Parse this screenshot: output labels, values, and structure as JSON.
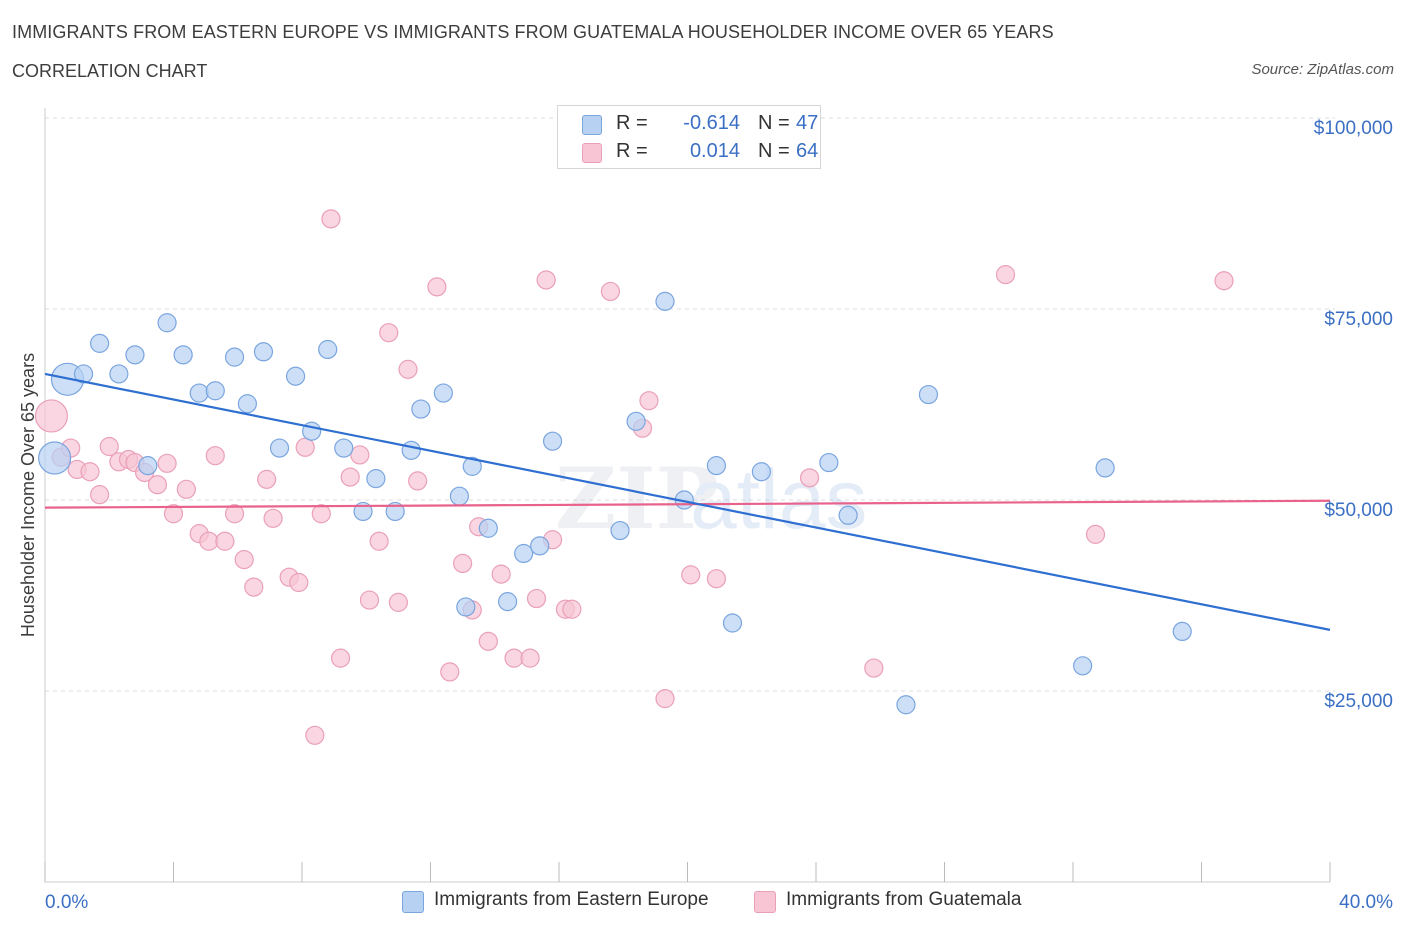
{
  "header": {
    "title": "IMMIGRANTS FROM EASTERN EUROPE VS IMMIGRANTS FROM GUATEMALA HOUSEHOLDER INCOME OVER 65 YEARS",
    "subtitle": "CORRELATION CHART",
    "source": "Source: ZipAtlas.com"
  },
  "legend": {
    "rows": [
      {
        "r_label": "R =",
        "r_value": "-0.614",
        "n_label": "N =",
        "n_value": "47"
      },
      {
        "r_label": "R =",
        "r_value": "0.014",
        "n_label": "N =",
        "n_value": "64"
      }
    ]
  },
  "bottom_legend": {
    "items": [
      "Immigrants from Eastern Europe",
      "Immigrants from Guatemala"
    ]
  },
  "watermark": {
    "zip": "ZIP",
    "atlas": "atlas"
  },
  "colors": {
    "blue_fill": "#b7d1f3",
    "blue_stroke": "#7aa5df",
    "blue_line": "#2e6fd1",
    "pink_fill": "#f7c5d4",
    "pink_stroke": "#eaa0b8",
    "pink_line": "#e8628c",
    "axis_text": "#3a6fc4",
    "grid": "#dddddd"
  },
  "chart_data": {
    "type": "scatter",
    "title": "IMMIGRANTS FROM EASTERN EUROPE VS IMMIGRANTS FROM GUATEMALA HOUSEHOLDER INCOME OVER 65 YEARS",
    "xlabel": "",
    "ylabel": "Householder Income Over 65 years",
    "xlim": [
      0,
      40
    ],
    "ylim": [
      0,
      100000
    ],
    "x_tick_labels": [
      "0.0%",
      "40.0%"
    ],
    "y_ticks": [
      25000,
      50000,
      75000,
      100000
    ],
    "y_tick_labels": [
      "$25,000",
      "$50,000",
      "$75,000",
      "$100,000"
    ],
    "grid": "horizontal dashed",
    "series": [
      {
        "name": "Immigrants from Eastern Europe",
        "color": "#b7d1f3",
        "trend": {
          "x": [
            0,
            40
          ],
          "y": [
            66500,
            33000
          ]
        },
        "points": [
          {
            "x": 0.3,
            "y": 55500,
            "big": true
          },
          {
            "x": 0.7,
            "y": 65800,
            "big": true
          },
          {
            "x": 1.2,
            "y": 66500
          },
          {
            "x": 1.7,
            "y": 70500
          },
          {
            "x": 2.3,
            "y": 66500
          },
          {
            "x": 2.8,
            "y": 69000
          },
          {
            "x": 3.2,
            "y": 54500
          },
          {
            "x": 3.8,
            "y": 73200
          },
          {
            "x": 4.3,
            "y": 69000
          },
          {
            "x": 4.8,
            "y": 64000
          },
          {
            "x": 5.3,
            "y": 64300
          },
          {
            "x": 5.9,
            "y": 68700
          },
          {
            "x": 6.3,
            "y": 62600
          },
          {
            "x": 6.8,
            "y": 69400
          },
          {
            "x": 7.3,
            "y": 56800
          },
          {
            "x": 7.8,
            "y": 66200
          },
          {
            "x": 8.3,
            "y": 59000
          },
          {
            "x": 8.8,
            "y": 69700
          },
          {
            "x": 9.3,
            "y": 56800
          },
          {
            "x": 9.9,
            "y": 48500
          },
          {
            "x": 10.3,
            "y": 52800
          },
          {
            "x": 10.9,
            "y": 48500
          },
          {
            "x": 11.4,
            "y": 56500
          },
          {
            "x": 11.7,
            "y": 61900
          },
          {
            "x": 12.4,
            "y": 64000
          },
          {
            "x": 12.9,
            "y": 50500
          },
          {
            "x": 13.3,
            "y": 54400
          },
          {
            "x": 13.8,
            "y": 46300
          },
          {
            "x": 14.4,
            "y": 36700
          },
          {
            "x": 14.9,
            "y": 43000
          },
          {
            "x": 15.4,
            "y": 44000
          },
          {
            "x": 15.8,
            "y": 57700
          },
          {
            "x": 13.1,
            "y": 36000
          },
          {
            "x": 17.9,
            "y": 46000
          },
          {
            "x": 18.4,
            "y": 60300
          },
          {
            "x": 19.9,
            "y": 50000
          },
          {
            "x": 19.3,
            "y": 76000
          },
          {
            "x": 20.9,
            "y": 54500
          },
          {
            "x": 21.4,
            "y": 33900
          },
          {
            "x": 22.3,
            "y": 53700
          },
          {
            "x": 24.4,
            "y": 54900
          },
          {
            "x": 25.0,
            "y": 48000
          },
          {
            "x": 26.8,
            "y": 23200
          },
          {
            "x": 27.5,
            "y": 63800
          },
          {
            "x": 32.3,
            "y": 28300
          },
          {
            "x": 33.0,
            "y": 54200
          },
          {
            "x": 35.4,
            "y": 32800
          }
        ]
      },
      {
        "name": "Immigrants from Guatemala",
        "color": "#f7c5d4",
        "trend": {
          "x": [
            0,
            40
          ],
          "y": [
            49000,
            49900
          ]
        },
        "points": [
          {
            "x": 0.2,
            "y": 61000,
            "big": true
          },
          {
            "x": 0.5,
            "y": 55600
          },
          {
            "x": 0.8,
            "y": 56800
          },
          {
            "x": 1.0,
            "y": 54000
          },
          {
            "x": 1.4,
            "y": 53700
          },
          {
            "x": 1.7,
            "y": 50700
          },
          {
            "x": 2.0,
            "y": 57000
          },
          {
            "x": 2.3,
            "y": 55000
          },
          {
            "x": 2.6,
            "y": 55300
          },
          {
            "x": 2.8,
            "y": 54900
          },
          {
            "x": 3.1,
            "y": 53600
          },
          {
            "x": 3.5,
            "y": 52000
          },
          {
            "x": 3.8,
            "y": 54800
          },
          {
            "x": 4.0,
            "y": 48200
          },
          {
            "x": 4.4,
            "y": 51400
          },
          {
            "x": 4.8,
            "y": 45600
          },
          {
            "x": 5.1,
            "y": 44600
          },
          {
            "x": 5.3,
            "y": 55800
          },
          {
            "x": 5.6,
            "y": 44600
          },
          {
            "x": 5.9,
            "y": 48200
          },
          {
            "x": 6.2,
            "y": 42200
          },
          {
            "x": 6.5,
            "y": 38600
          },
          {
            "x": 6.9,
            "y": 52700
          },
          {
            "x": 7.1,
            "y": 47600
          },
          {
            "x": 7.6,
            "y": 39900
          },
          {
            "x": 7.9,
            "y": 39200
          },
          {
            "x": 8.1,
            "y": 56900
          },
          {
            "x": 8.4,
            "y": 19200
          },
          {
            "x": 8.6,
            "y": 48200
          },
          {
            "x": 8.9,
            "y": 86800
          },
          {
            "x": 9.2,
            "y": 29300
          },
          {
            "x": 9.5,
            "y": 53000
          },
          {
            "x": 9.8,
            "y": 55900
          },
          {
            "x": 10.1,
            "y": 36900
          },
          {
            "x": 10.4,
            "y": 44600
          },
          {
            "x": 10.7,
            "y": 71900
          },
          {
            "x": 11.0,
            "y": 36600
          },
          {
            "x": 11.3,
            "y": 67100
          },
          {
            "x": 11.6,
            "y": 52500
          },
          {
            "x": 12.2,
            "y": 77900
          },
          {
            "x": 12.6,
            "y": 27500
          },
          {
            "x": 13.0,
            "y": 41700
          },
          {
            "x": 13.3,
            "y": 35600
          },
          {
            "x": 13.5,
            "y": 46500
          },
          {
            "x": 13.8,
            "y": 31500
          },
          {
            "x": 14.2,
            "y": 40300
          },
          {
            "x": 14.6,
            "y": 29300
          },
          {
            "x": 15.1,
            "y": 29300
          },
          {
            "x": 15.3,
            "y": 37100
          },
          {
            "x": 15.8,
            "y": 44800
          },
          {
            "x": 16.2,
            "y": 35700
          },
          {
            "x": 16.4,
            "y": 35700
          },
          {
            "x": 15.6,
            "y": 78800
          },
          {
            "x": 17.6,
            "y": 77300
          },
          {
            "x": 18.6,
            "y": 59400
          },
          {
            "x": 18.8,
            "y": 63000
          },
          {
            "x": 19.3,
            "y": 24000
          },
          {
            "x": 20.1,
            "y": 40200
          },
          {
            "x": 20.9,
            "y": 39700
          },
          {
            "x": 23.8,
            "y": 52900
          },
          {
            "x": 25.8,
            "y": 28000
          },
          {
            "x": 29.9,
            "y": 79500
          },
          {
            "x": 32.7,
            "y": 45500
          },
          {
            "x": 36.7,
            "y": 78700
          }
        ]
      }
    ]
  }
}
